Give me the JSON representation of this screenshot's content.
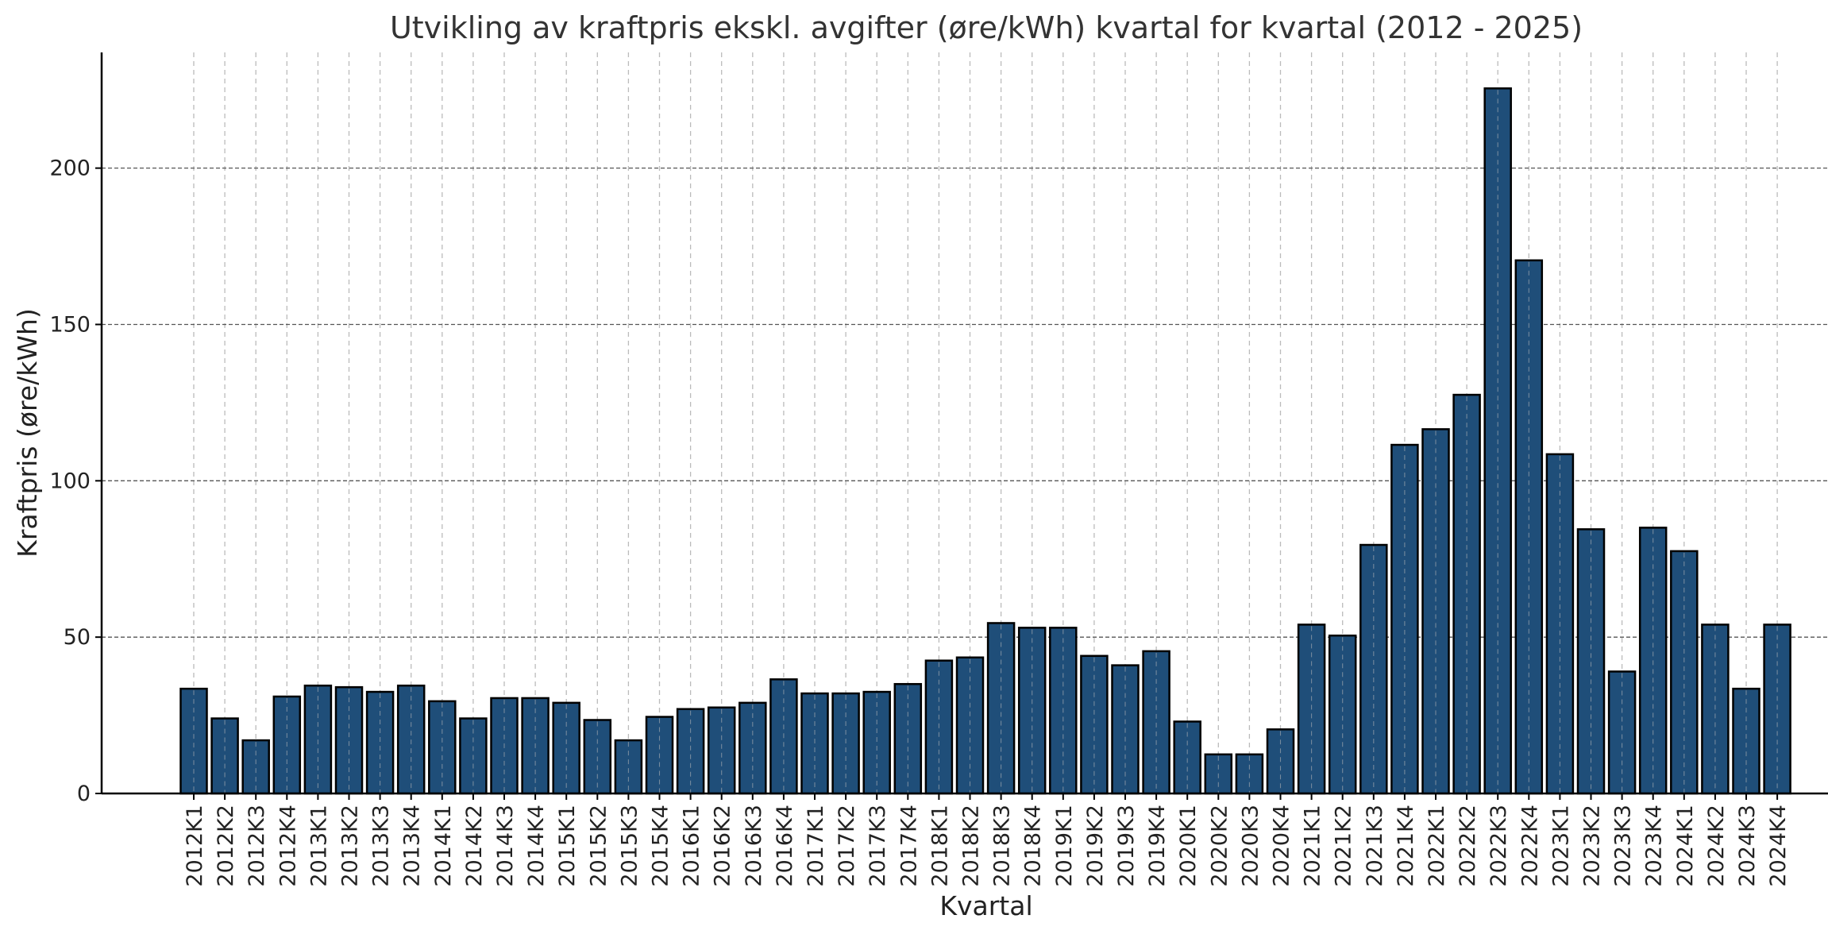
{
  "chart_data": {
    "type": "bar",
    "title": "Utvikling av kraftpris ekskl. avgifter (øre/kWh) kvartal for kvartal (2012 - 2025)",
    "xlabel": "Kvartal",
    "ylabel": "Kraftpris (øre/kWh)",
    "ylim": [
      0,
      237
    ],
    "yticks": [
      0,
      50,
      100,
      150,
      200
    ],
    "grid": true,
    "categories": [
      "2012K1",
      "2012K2",
      "2012K3",
      "2012K4",
      "2013K1",
      "2013K2",
      "2013K3",
      "2013K4",
      "2014K1",
      "2014K2",
      "2014K3",
      "2014K4",
      "2015K1",
      "2015K2",
      "2015K3",
      "2015K4",
      "2016K1",
      "2016K2",
      "2016K3",
      "2016K4",
      "2017K1",
      "2017K2",
      "2017K3",
      "2017K4",
      "2018K1",
      "2018K2",
      "2018K3",
      "2018K4",
      "2019K1",
      "2019K2",
      "2019K3",
      "2019K4",
      "2020K1",
      "2020K2",
      "2020K3",
      "2020K4",
      "2021K1",
      "2021K2",
      "2021K3",
      "2021K4",
      "2022K1",
      "2022K2",
      "2022K3",
      "2022K4",
      "2023K1",
      "2023K2",
      "2023K3",
      "2023K4",
      "2024K1",
      "2024K2",
      "2024K3",
      "2024K4"
    ],
    "values": [
      33.5,
      24,
      17,
      31,
      34.5,
      34,
      32.5,
      34.5,
      29.5,
      24,
      30.5,
      30.5,
      29,
      23.5,
      17,
      24.5,
      27,
      27.5,
      29,
      36.5,
      32,
      32,
      32.5,
      35,
      42.5,
      43.5,
      54.5,
      53,
      53,
      44,
      41,
      45.5,
      23,
      12.5,
      12.5,
      20.5,
      54,
      50.5,
      79.5,
      111.5,
      116.5,
      127.5,
      225.5,
      170.5,
      108.5,
      84.5,
      39,
      85,
      77.5,
      54,
      33.5,
      54
    ],
    "colors": {
      "bar": "#1f4e79",
      "edge": "#000000",
      "grid_major": "#555555",
      "grid_minor": "#bbbbbb",
      "axis": "#000000"
    }
  }
}
